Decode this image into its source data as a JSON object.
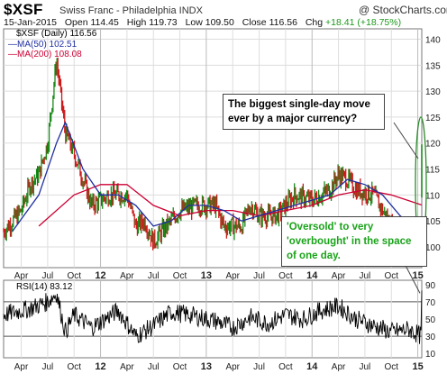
{
  "header": {
    "symbol": "$XSF",
    "security_name": "Swiss Franc - Philadelphia INDX",
    "brand": "@ StockCharts.com",
    "date": "15-Jan-2015",
    "open_label": "Open",
    "open": "114.45",
    "high_label": "High",
    "high": "119.73",
    "low_label": "Low",
    "low": "109.50",
    "close_label": "Close",
    "close": "116.56",
    "chg_label": "Chg",
    "chg": "+18.41 (+18.75%)"
  },
  "legend": {
    "price": "$XSF (Daily) 116.56",
    "ma50": "MA(50) 102.51",
    "ma200": "MA(200) 108.08",
    "rsi": "RSI(14) 83.12"
  },
  "annotations": {
    "callout_top": "The biggest single-day move ever by a major currency?",
    "callout_bottom": "'Oversold' to very 'overbought' in the space of one day."
  },
  "colors": {
    "up_bar": "#1a8a1a",
    "down_bar": "#cc1a1a",
    "ma50": "#1f2fa0",
    "ma200": "#cc0033",
    "rsi_line": "#000000",
    "grid": "#dddddd",
    "callout_text_green": "#1aa31a",
    "arrow": "#444444"
  },
  "chart_data": [
    {
      "type": "line",
      "title": "$XSF Swiss Franc - Philadelphia INDX (Daily)",
      "x_tick_labels": [
        "Apr",
        "Jul",
        "Oct",
        "12",
        "Apr",
        "Jul",
        "Oct",
        "13",
        "Apr",
        "Jul",
        "Oct",
        "14",
        "Apr",
        "Jul",
        "Oct",
        "15"
      ],
      "x_months": [
        "2011-04",
        "2011-07",
        "2011-10",
        "2012-01",
        "2012-04",
        "2012-07",
        "2012-10",
        "2013-01",
        "2013-04",
        "2013-07",
        "2013-10",
        "2014-01",
        "2014-04",
        "2014-07",
        "2014-10",
        "2015-01"
      ],
      "y_ticks": [
        100,
        105,
        110,
        115,
        120,
        125,
        130,
        135,
        140
      ],
      "ylim": [
        96,
        142
      ],
      "x_date_range": [
        "2011-02",
        "2015-01-15"
      ],
      "series": [
        {
          "name": "$XSF",
          "x": [
            "2011-02",
            "2011-04",
            "2011-05",
            "2011-06",
            "2011-07",
            "2011-08",
            "2011-09",
            "2011-10",
            "2011-12",
            "2012-02",
            "2012-04",
            "2012-05",
            "2012-06",
            "2012-07",
            "2012-08",
            "2012-10",
            "2012-12",
            "2013-02",
            "2013-03",
            "2013-05",
            "2013-06",
            "2013-07",
            "2013-09",
            "2013-11",
            "2014-01",
            "2014-03",
            "2014-04",
            "2014-05",
            "2014-06",
            "2014-08",
            "2014-10",
            "2014-11",
            "2014-12",
            "2015-01-14",
            "2015-01-15"
          ],
          "values": [
            103,
            107,
            112,
            114,
            120,
            136,
            122,
            118,
            108,
            110,
            110,
            104,
            105,
            101,
            103,
            107,
            108,
            108,
            104,
            104,
            108,
            106,
            106,
            110,
            109,
            111,
            114,
            113,
            111,
            110,
            104,
            103,
            102,
            98,
            116.56
          ]
        },
        {
          "name": "MA(50)",
          "x": [
            "2011-03",
            "2011-06",
            "2011-08",
            "2011-09",
            "2011-11",
            "2012-01",
            "2012-03",
            "2012-05",
            "2012-07",
            "2012-09",
            "2012-11",
            "2013-01",
            "2013-03",
            "2013-05",
            "2013-07",
            "2013-09",
            "2013-11",
            "2014-01",
            "2014-03",
            "2014-05",
            "2014-07",
            "2014-09",
            "2014-11",
            "2015-01-14"
          ],
          "values": [
            103,
            110,
            120,
            124,
            115,
            110,
            110,
            108,
            104,
            105,
            108,
            108,
            107,
            105,
            106,
            107,
            108,
            109,
            110,
            113,
            112,
            110,
            106,
            102.51
          ]
        },
        {
          "name": "MA(200)",
          "x": [
            "2011-06",
            "2011-10",
            "2012-01",
            "2012-04",
            "2012-07",
            "2012-10",
            "2013-01",
            "2013-04",
            "2013-07",
            "2013-10",
            "2014-01",
            "2014-04",
            "2014-07",
            "2014-10",
            "2015-01-14"
          ],
          "values": [
            104,
            110,
            112,
            112,
            108,
            106,
            107,
            107,
            106,
            107,
            108,
            110,
            111,
            110,
            108.08
          ]
        }
      ]
    },
    {
      "type": "line",
      "title": "RSI(14)",
      "y_ticks": [
        10,
        30,
        50,
        70,
        90
      ],
      "ylim": [
        5,
        95
      ],
      "reference_lines": [
        30,
        70
      ],
      "series": [
        {
          "name": "RSI(14)",
          "x": [
            "2011-02",
            "2011-05",
            "2011-07",
            "2011-08",
            "2011-09",
            "2011-10",
            "2011-12",
            "2012-03",
            "2012-05",
            "2012-07",
            "2012-09",
            "2012-11",
            "2013-02",
            "2013-04",
            "2013-06",
            "2013-08",
            "2013-10",
            "2013-12",
            "2014-02",
            "2014-04",
            "2014-06",
            "2014-08",
            "2014-10",
            "2014-12",
            "2015-01-14",
            "2015-01-15"
          ],
          "values": [
            55,
            62,
            70,
            80,
            35,
            55,
            40,
            60,
            30,
            42,
            58,
            55,
            48,
            40,
            52,
            45,
            55,
            50,
            60,
            65,
            50,
            42,
            35,
            38,
            30,
            83.12
          ]
        }
      ]
    }
  ]
}
